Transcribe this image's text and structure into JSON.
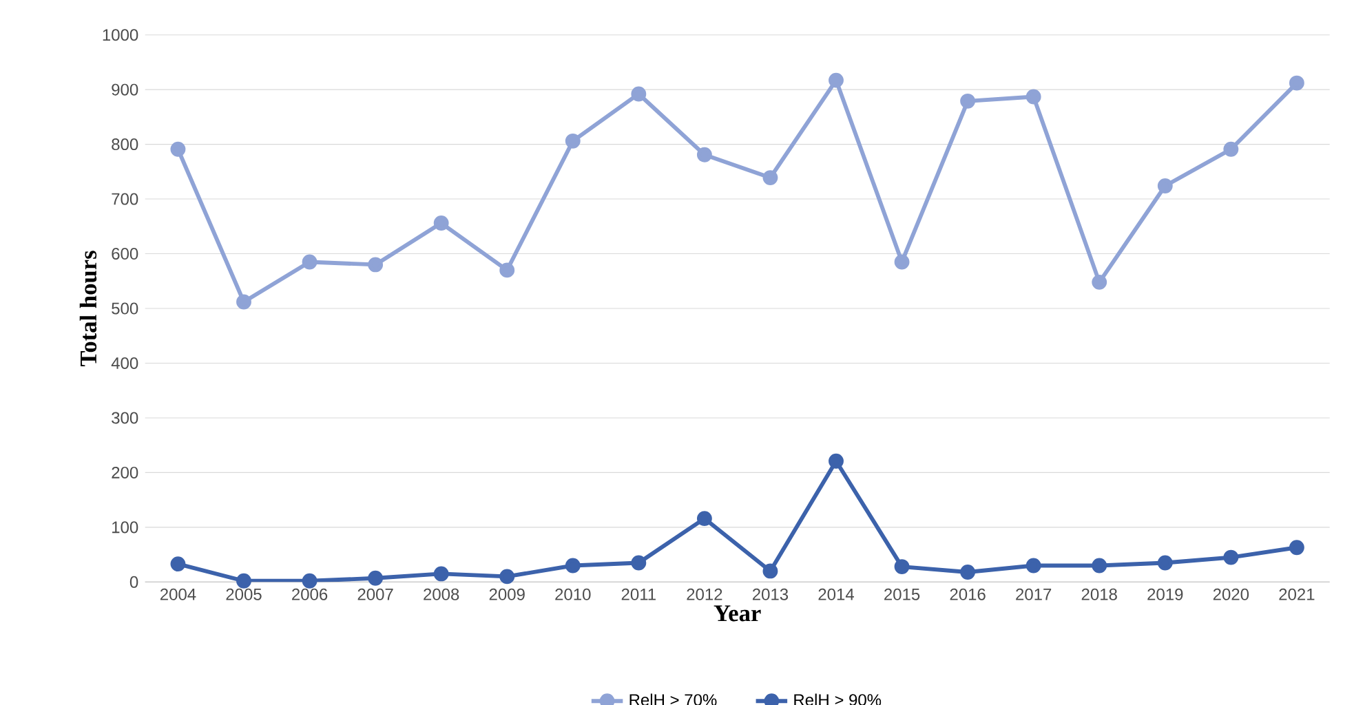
{
  "chart_data": {
    "type": "line",
    "xlabel": "Year",
    "ylabel": "Total hours",
    "categories": [
      "2004",
      "2005",
      "2006",
      "2007",
      "2008",
      "2009",
      "2010",
      "2011",
      "2012",
      "2013",
      "2014",
      "2015",
      "2016",
      "2017",
      "2018",
      "2019",
      "2020",
      "2021"
    ],
    "series": [
      {
        "name": "RelH > 70%",
        "color": "#8fa3d6",
        "values": [
          791,
          512,
          585,
          580,
          656,
          570,
          806,
          892,
          781,
          739,
          917,
          585,
          879,
          887,
          548,
          724,
          791,
          912
        ]
      },
      {
        "name": "RelH > 90%",
        "color": "#3c62ab",
        "values": [
          33,
          2,
          2,
          7,
          15,
          10,
          30,
          35,
          116,
          20,
          221,
          28,
          18,
          30,
          30,
          35,
          45,
          63
        ]
      }
    ],
    "ylim": [
      0,
      1000
    ],
    "yticks": [
      0,
      100,
      200,
      300,
      400,
      500,
      600,
      700,
      800,
      900,
      1000
    ],
    "grid": "y",
    "legend": "bottom",
    "marker": "circle",
    "line_style": "solid"
  }
}
